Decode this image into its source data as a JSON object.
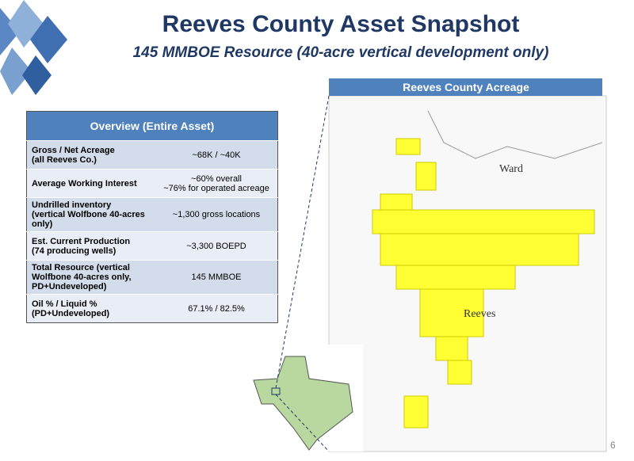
{
  "header": {
    "title": "Reeves County Asset Snapshot",
    "subtitle": "145 MMBOE Resource (40-acre vertical development only)"
  },
  "table": {
    "title": "Overview (Entire Asset)",
    "rows": [
      [
        "Gross / Net Acreage\n(all Reeves Co.)",
        "~68K / ~40K"
      ],
      [
        "Average Working Interest",
        "~60% overall\n~76% for operated acreage"
      ],
      [
        "Undrilled inventory\n(vertical Wolfbone 40-acres\nonly)",
        "~1,300 gross locations"
      ],
      [
        "Est. Current Production\n(74 producing wells)",
        "~3,300 BOEPD"
      ],
      [
        "Total Resource (vertical\nWolfbone 40-acres only,\nPD+Undeveloped)",
        "145 MMBOE"
      ],
      [
        "Oil % / Liquid %\n(PD+Undeveloped)",
        "67.1% / 82.5%"
      ]
    ]
  },
  "map": {
    "title": "Reeves County Acreage",
    "labels": [
      "Ward",
      "Reeves"
    ]
  },
  "footer": {
    "page": "6"
  }
}
